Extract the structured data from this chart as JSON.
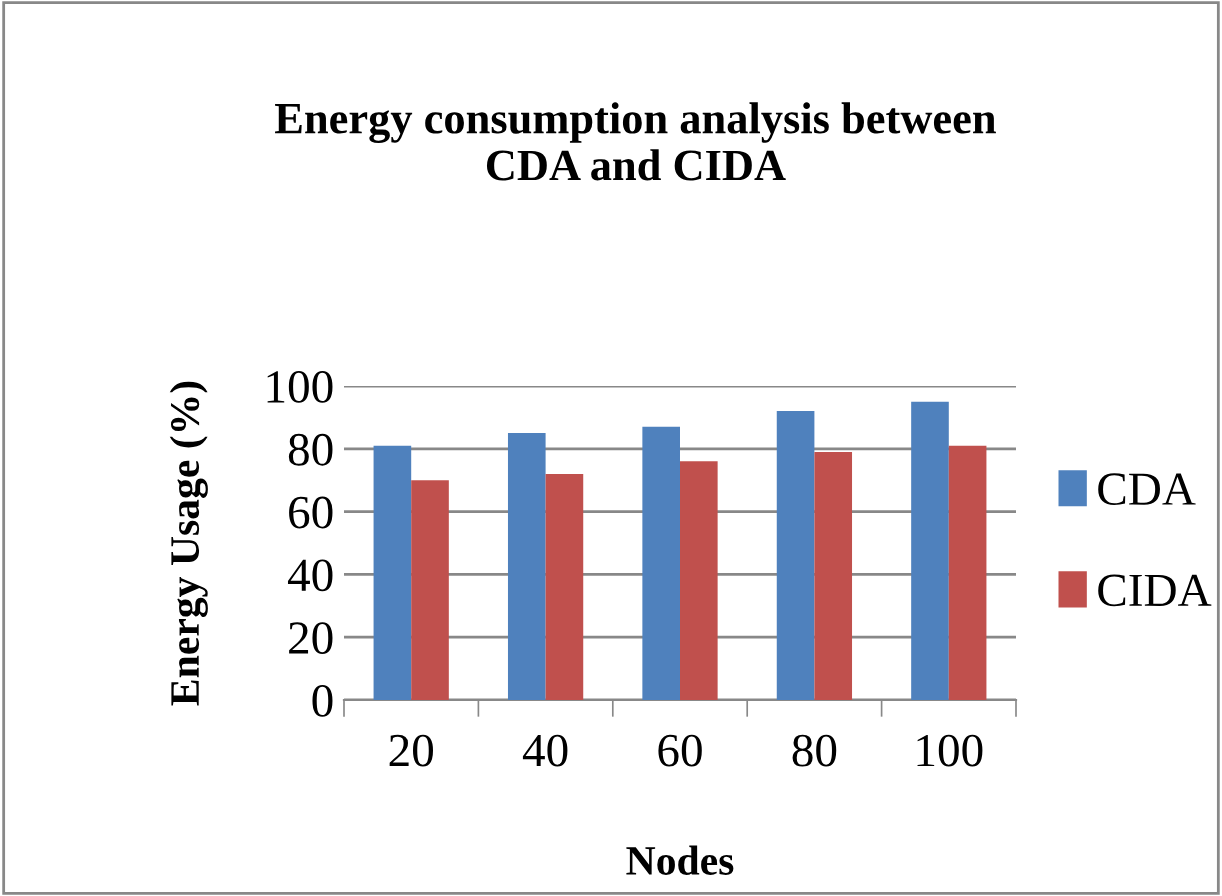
{
  "chart_data": {
    "type": "bar",
    "title": "Energy consumption analysis between\nCDA and CIDA",
    "xlabel": "Nodes",
    "ylabel": "Energy Usage (%)",
    "categories": [
      "20",
      "40",
      "60",
      "80",
      "100"
    ],
    "series": [
      {
        "name": "CDA",
        "color": "#4f81bd",
        "values": [
          81,
          85,
          87,
          92,
          95
        ]
      },
      {
        "name": "CIDA",
        "color": "#c0504d",
        "values": [
          70,
          72,
          76,
          79,
          81
        ]
      }
    ],
    "ylim": [
      0,
      100
    ],
    "yticks": [
      0,
      20,
      40,
      60,
      80,
      100
    ],
    "grid": "y",
    "legend": "right"
  }
}
